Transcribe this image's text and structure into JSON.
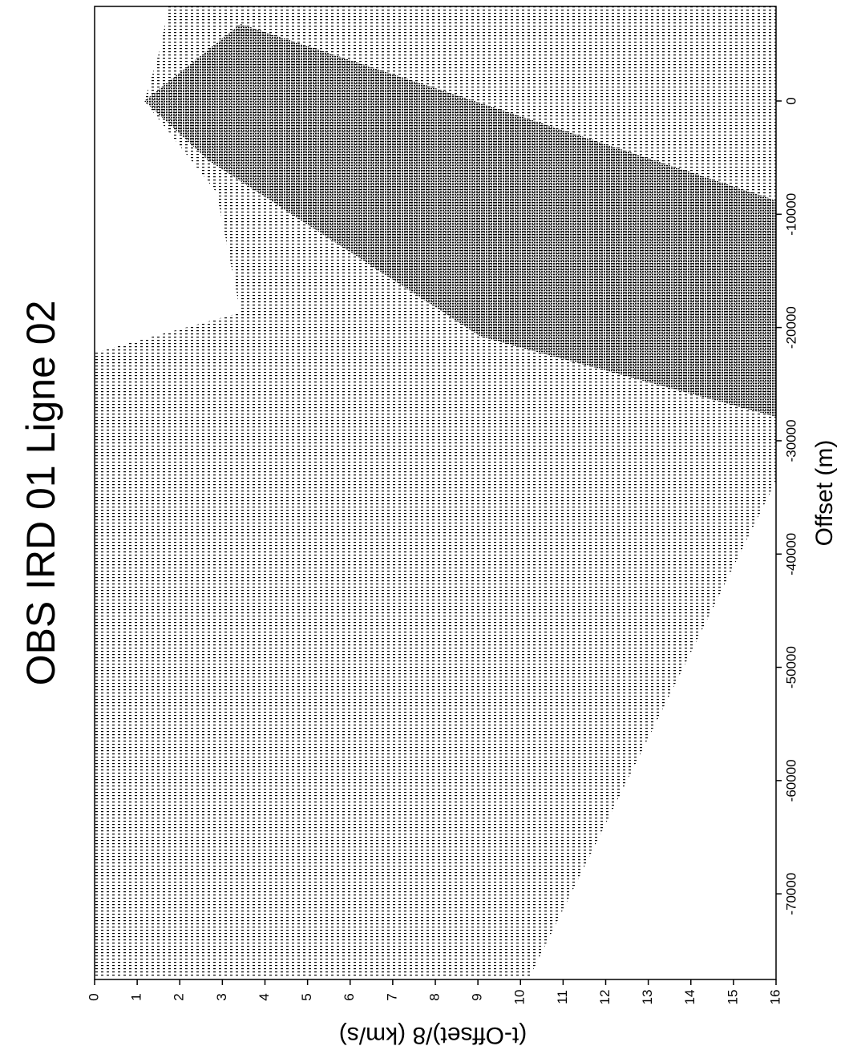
{
  "chart_data": {
    "type": "seismic-section",
    "title": "OBS IRD 01 Ligne 02",
    "x_label": "Offset (m)",
    "y_label": "(t-Offset)/8 (km/s)",
    "xlim": [
      8350,
      -77560
    ],
    "xticks": [
      0,
      -10000,
      -20000,
      -30000,
      -40000,
      -50000,
      -60000,
      -70000
    ],
    "ylim": [
      0,
      16
    ],
    "yticks": [
      0,
      1,
      2,
      3,
      4,
      5,
      6,
      7,
      8,
      9,
      10,
      11,
      12,
      13,
      14,
      15,
      16
    ]
  }
}
